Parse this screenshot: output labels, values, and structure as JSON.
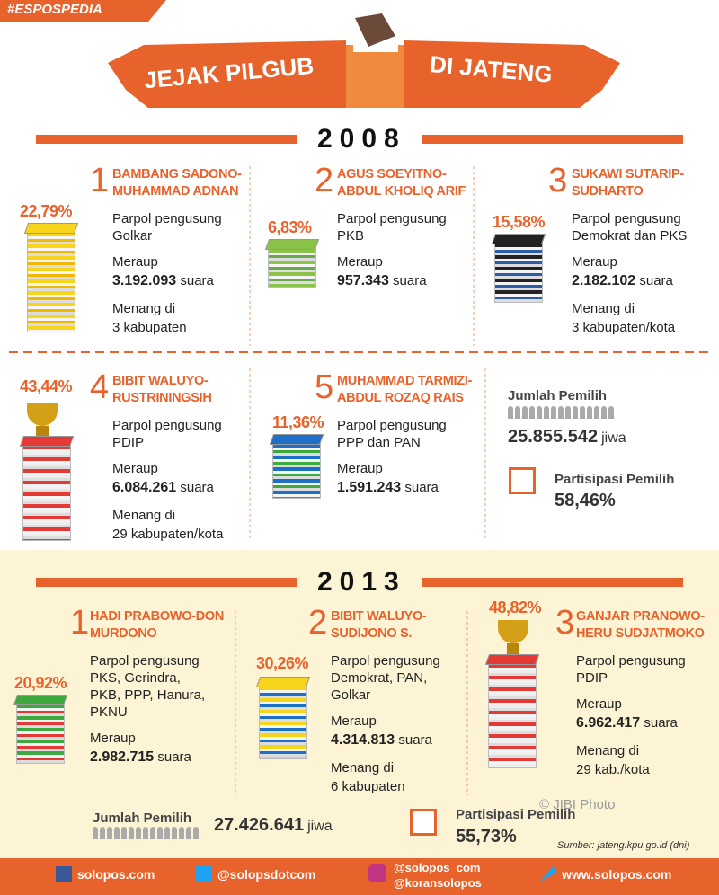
{
  "tag": "#ESPOSPEDIA",
  "title": {
    "left": "JEJAK PILGUB",
    "right": "DI JATENG"
  },
  "elections": [
    {
      "year": "2008",
      "candidates": [
        {
          "number": "1",
          "name": [
            "BAMBANG SADONO-",
            "MUHAMMAD ADNAN"
          ],
          "percent": "22,79%",
          "party_label": "Parpol pengusung",
          "parties": [
            "Golkar"
          ],
          "votes_label": "Meraup",
          "votes": "3.192.093",
          "votes_unit": "suara",
          "wins_label": "Menang di",
          "wins": "3 kabupaten"
        },
        {
          "number": "2",
          "name": [
            "AGUS SOEYITNO-",
            "ABDUL KHOLIQ ARIF"
          ],
          "percent": "6,83%",
          "party_label": "Parpol pengusung",
          "parties": [
            "PKB"
          ],
          "votes_label": "Meraup",
          "votes": "957.343",
          "votes_unit": "suara"
        },
        {
          "number": "3",
          "name": [
            "SUKAWI SUTARIP-",
            "SUDHARTO"
          ],
          "percent": "15,58%",
          "party_label": "Parpol pengusung",
          "parties": [
            "Demokrat dan PKS"
          ],
          "votes_label": "Meraup",
          "votes": "2.182.102",
          "votes_unit": "suara",
          "wins_label": "Menang di",
          "wins": "3 kabupaten/kota"
        },
        {
          "number": "4",
          "name": [
            "BIBIT WALUYO-",
            "RUSTRININGSIH"
          ],
          "percent": "43,44%",
          "party_label": "Parpol pengusung",
          "parties": [
            "PDIP"
          ],
          "votes_label": "Meraup",
          "votes": "6.084.261",
          "votes_unit": "suara",
          "wins_label": "Menang di",
          "wins": "29 kabupaten/kota"
        },
        {
          "number": "5",
          "name": [
            "MUHAMMAD TARMIZI-",
            "ABDUL ROZAQ RAIS"
          ],
          "percent": "11,36%",
          "party_label": "Parpol pengusung",
          "parties": [
            "PPP dan PAN"
          ],
          "votes_label": "Meraup",
          "votes": "1.591.243",
          "votes_unit": "suara"
        }
      ],
      "voters_label": "Jumlah Pemilih",
      "voters": "25.855.542",
      "voters_unit": "jiwa",
      "participation_label": "Partisipasi Pemilih",
      "participation": "58,46%"
    },
    {
      "year": "2013",
      "candidates": [
        {
          "number": "1",
          "name": [
            "HADI PRABOWO-DON",
            "MURDONO"
          ],
          "percent": "20,92%",
          "party_label": "Parpol pengusung",
          "parties": [
            "PKS, Gerindra,",
            "PKB, PPP, Hanura,",
            "PKNU"
          ],
          "votes_label": "Meraup",
          "votes": "2.982.715",
          "votes_unit": "suara"
        },
        {
          "number": "2",
          "name": [
            "BIBIT WALUYO-",
            "SUDIJONO S."
          ],
          "percent": "30,26%",
          "party_label": "Parpol pengusung",
          "parties": [
            "Demokrat, PAN,",
            "Golkar"
          ],
          "votes_label": "Meraup",
          "votes": "4.314.813",
          "votes_unit": "suara",
          "wins_label": "Menang di",
          "wins": "6 kabupaten"
        },
        {
          "number": "3",
          "name": [
            "GANJAR PRANOWO-",
            "HERU SUDJATMOKO"
          ],
          "percent": "48,82%",
          "party_label": "Parpol pengusung",
          "parties": [
            "PDIP"
          ],
          "votes_label": "Meraup",
          "votes": "6.962.417",
          "votes_unit": "suara",
          "wins_label": "Menang di",
          "wins": "29 kab./kota"
        }
      ],
      "voters_label": "Jumlah Pemilih",
      "voters": "27.426.641",
      "voters_unit": "jiwa",
      "participation_label": "Partisipasi Pemilih",
      "participation": "55,73%"
    }
  ],
  "watermark": "© JIBI Photo",
  "source": "Sumber: jateng.kpu.go.id (dni)",
  "footer": [
    "solopos.com",
    "@solopsdotcom",
    "@solopos_com",
    "@koransolopos",
    "www.solopos.com"
  ]
}
